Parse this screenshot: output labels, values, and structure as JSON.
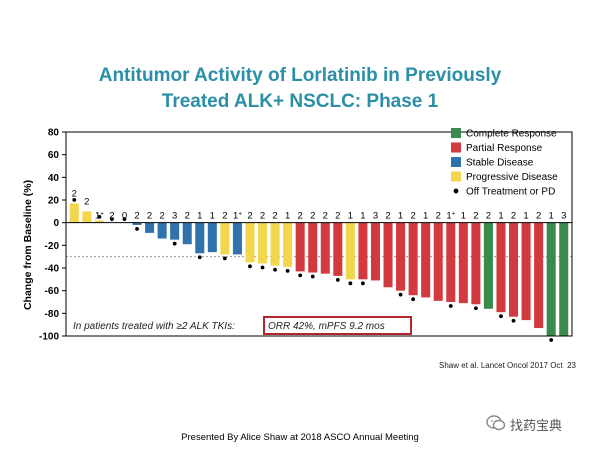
{
  "slide": {
    "title_line1": "Antitumor Activity of Lorlatinib in Previously",
    "title_line2": "Treated ALK+ NSCLC: Phase 1",
    "presented_by": "Presented By Alice Shaw at 2018 ASCO Annual Meeting",
    "watermark": "找药宝典"
  },
  "chart_data": {
    "type": "bar",
    "ylabel": "Change from Baseline (%)",
    "ylim": [
      -100,
      80
    ],
    "yticks": [
      80,
      60,
      40,
      20,
      0,
      -20,
      -40,
      -60,
      -80,
      -100
    ],
    "reference_line": -30,
    "annotation_prefix": "In patients treated with ≥2 ALK TKIs: ",
    "annotation_boxed": "ORR 42%, mPFS 9.2 mos",
    "citation": "Shaw et al. Lancet Oncol 2017 Oct  23",
    "legend": [
      {
        "key": "CR",
        "label": "Complete Response",
        "color": "#3a8a4e",
        "marker": "square"
      },
      {
        "key": "PR",
        "label": "Partial Response",
        "color": "#d33a3f",
        "marker": "square"
      },
      {
        "key": "SD",
        "label": "Stable Disease",
        "color": "#2f72ad",
        "marker": "square"
      },
      {
        "key": "PD",
        "label": "Progressive Disease",
        "color": "#f2d64d",
        "marker": "square"
      },
      {
        "key": "OFF",
        "label": "Off Treatment or PD",
        "color": "#000000",
        "marker": "dot"
      }
    ],
    "bars": [
      {
        "value": 17,
        "cat": "PD",
        "label": "2",
        "dot": true
      },
      {
        "value": 10,
        "cat": "PD",
        "label": "2",
        "dot": false
      },
      {
        "value": 2,
        "cat": "PD",
        "label": "1",
        "sup": "+",
        "dot": true
      },
      {
        "value": 0,
        "cat": "SD",
        "label": "2",
        "dot": true
      },
      {
        "value": 0,
        "cat": "SD",
        "label": "0",
        "dot": true
      },
      {
        "value": -2,
        "cat": "SD",
        "label": "2",
        "dot": true
      },
      {
        "value": -9,
        "cat": "SD",
        "label": "2",
        "dot": false
      },
      {
        "value": -14,
        "cat": "SD",
        "label": "2",
        "dot": false
      },
      {
        "value": -15,
        "cat": "SD",
        "label": "3",
        "dot": true
      },
      {
        "value": -19,
        "cat": "SD",
        "label": "2",
        "dot": false
      },
      {
        "value": -27,
        "cat": "SD",
        "label": "1",
        "dot": true
      },
      {
        "value": -26,
        "cat": "SD",
        "label": "1",
        "dot": false
      },
      {
        "value": -28,
        "cat": "PD",
        "label": "2",
        "dot": true
      },
      {
        "value": -28,
        "cat": "SD",
        "label": "1",
        "sup": "+",
        "dot": false
      },
      {
        "value": -35,
        "cat": "PD",
        "label": "2",
        "dot": true
      },
      {
        "value": -36,
        "cat": "PD",
        "label": "2",
        "dot": true
      },
      {
        "value": -38,
        "cat": "PD",
        "label": "2",
        "dot": true
      },
      {
        "value": -39,
        "cat": "PD",
        "label": "1",
        "dot": true
      },
      {
        "value": -43,
        "cat": "PR",
        "label": "2",
        "dot": true
      },
      {
        "value": -44,
        "cat": "PR",
        "label": "2",
        "dot": true
      },
      {
        "value": -45,
        "cat": "PR",
        "label": "2",
        "dot": false
      },
      {
        "value": -47,
        "cat": "PR",
        "label": "2",
        "dot": true
      },
      {
        "value": -50,
        "cat": "PD",
        "label": "1",
        "dot": true
      },
      {
        "value": -50,
        "cat": "PR",
        "label": "1",
        "dot": true
      },
      {
        "value": -51,
        "cat": "PR",
        "label": "3",
        "dot": false
      },
      {
        "value": -57,
        "cat": "PR",
        "label": "2",
        "dot": false
      },
      {
        "value": -60,
        "cat": "PR",
        "label": "1",
        "dot": true
      },
      {
        "value": -64,
        "cat": "PR",
        "label": "2",
        "dot": true
      },
      {
        "value": -66,
        "cat": "PR",
        "label": "1",
        "dot": false
      },
      {
        "value": -69,
        "cat": "PR",
        "label": "2",
        "dot": false
      },
      {
        "value": -70,
        "cat": "PR",
        "label": "1",
        "sup": "+",
        "dot": true
      },
      {
        "value": -71,
        "cat": "PR",
        "label": "1",
        "dot": false
      },
      {
        "value": -72,
        "cat": "PR",
        "label": "2",
        "dot": true
      },
      {
        "value": -76,
        "cat": "CR",
        "label": "2",
        "dot": false
      },
      {
        "value": -79,
        "cat": "PR",
        "label": "1",
        "dot": true
      },
      {
        "value": -83,
        "cat": "PR",
        "label": "2",
        "dot": true
      },
      {
        "value": -86,
        "cat": "PR",
        "label": "1",
        "dot": false
      },
      {
        "value": -93,
        "cat": "PR",
        "label": "2",
        "dot": false
      },
      {
        "value": -100,
        "cat": "CR",
        "label": "1",
        "dot": true
      },
      {
        "value": -100,
        "cat": "CR",
        "label": "3",
        "dot": false
      }
    ]
  }
}
